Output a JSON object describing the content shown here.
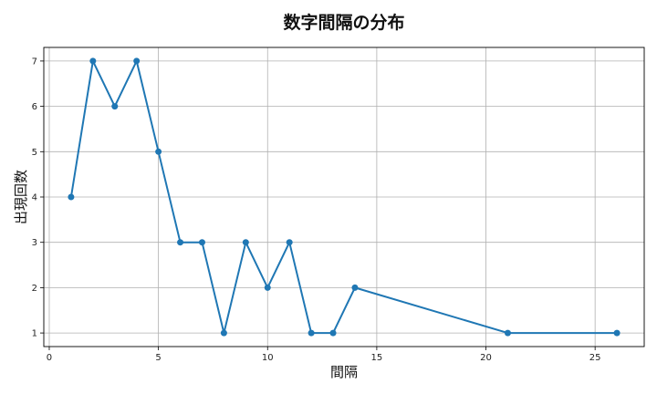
{
  "chart_data": {
    "type": "line",
    "title": "数字間隔の分布",
    "xlabel": "間隔",
    "ylabel": "出現回数",
    "xlim": [
      -0.25,
      27.25
    ],
    "ylim": [
      0.7,
      7.3
    ],
    "xticks": [
      0,
      5,
      10,
      15,
      20,
      25
    ],
    "yticks": [
      1,
      2,
      3,
      4,
      5,
      6,
      7
    ],
    "grid": true,
    "color": "#1f77b4",
    "series": [
      {
        "x": [
          1,
          2,
          3,
          4,
          5,
          6,
          7,
          8,
          9,
          10,
          11,
          12,
          13,
          14,
          21,
          26
        ],
        "y": [
          4,
          7,
          6,
          7,
          5,
          3,
          3,
          1,
          3,
          2,
          3,
          1,
          1,
          2,
          1,
          1
        ]
      }
    ]
  }
}
